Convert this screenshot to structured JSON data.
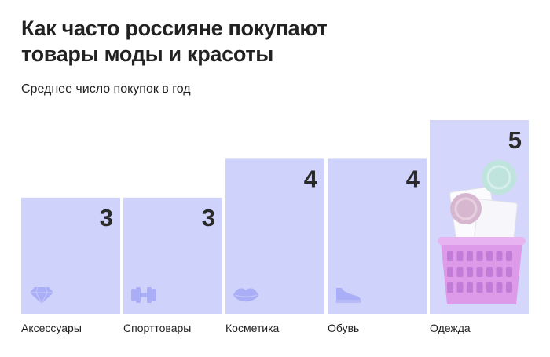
{
  "title_line1": "Как часто россияне покупают",
  "title_line2": "товары моды и красоты",
  "subtitle": "Среднее число покупок в год",
  "colors": {
    "bar": "#cfd3fb",
    "bar_last": "#d4d6fb",
    "icon": "#a9aef6",
    "text": "#222222"
  },
  "chart_data": {
    "type": "bar",
    "title": "Как часто россияне покупают товары моды и красоты",
    "subtitle": "Среднее число покупок в год",
    "categories": [
      "Аксессуары",
      "Спорттовары",
      "Косметика",
      "Обувь",
      "Одежда"
    ],
    "values": [
      3,
      3,
      4,
      4,
      5
    ],
    "icons": [
      "diamond-icon",
      "dumbbell-icon",
      "lips-icon",
      "sneaker-icon",
      "shopping-basket-illustration"
    ],
    "value_labels": [
      "3",
      "3",
      "4",
      "4",
      "5"
    ],
    "ylim": [
      0,
      5
    ],
    "grid": false,
    "legend": "none"
  }
}
